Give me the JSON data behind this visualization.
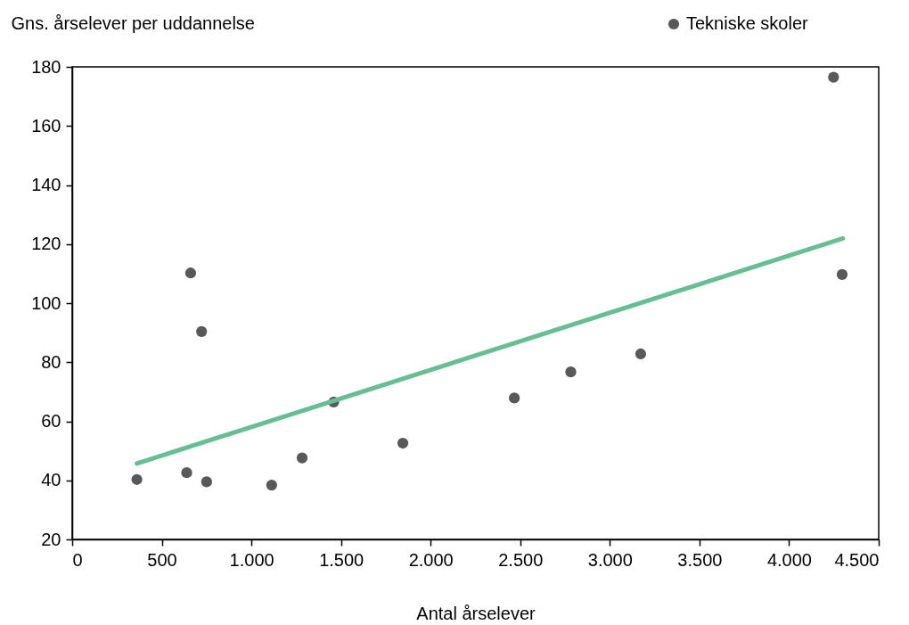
{
  "chart_data": {
    "type": "scatter",
    "ylabel": "Gns. årselever per uddannelse",
    "xlabel": "Antal årselever",
    "xlim": [
      0,
      4500
    ],
    "xticks": [
      0,
      500,
      {
        "value": 1000,
        "label": "1.000"
      },
      {
        "value": 1500,
        "label": "1.500"
      },
      {
        "value": 2000,
        "label": "2.000"
      },
      {
        "value": 2500,
        "label": "2.500"
      },
      {
        "value": 3000,
        "label": "3.000"
      },
      {
        "value": 3500,
        "label": "3.500"
      },
      {
        "value": 4000,
        "label": "4.000"
      },
      {
        "value": 4500,
        "label": "4.500"
      }
    ],
    "ylim": [
      20,
      180
    ],
    "yticks": [
      20,
      40,
      60,
      80,
      100,
      120,
      140,
      160,
      180
    ],
    "legend": "top right",
    "grid": false,
    "series": [
      {
        "name": "Tekniske skoler",
        "marker": "circle",
        "color": "#595959",
        "x": [
          361,
          639,
          661,
          722,
          750,
          1113,
          1283,
          1459,
          1845,
          2467,
          2782,
          3172,
          4248,
          4296
        ],
        "values": [
          40.3,
          42.6,
          110.2,
          90.4,
          39.5,
          38.4,
          47.6,
          66.5,
          52.6,
          67.9,
          76.7,
          82.8,
          176.5,
          109.7
        ]
      },
      {
        "type": "line",
        "color": "#66bf92",
        "x": [
          361,
          4300
        ],
        "values": [
          45.7,
          121.9
        ]
      }
    ]
  }
}
